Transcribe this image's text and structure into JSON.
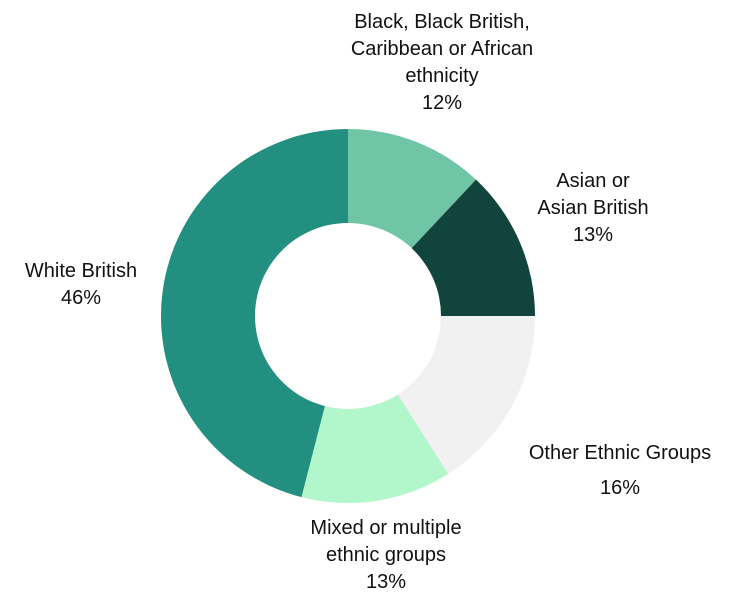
{
  "chart_data": {
    "type": "pie",
    "style": "donut",
    "start": "top",
    "direction": "clockwise",
    "slices": [
      {
        "key": "black",
        "label_lines": [
          "Black, Black British,",
          "Caribbean or African",
          "ethnicity"
        ],
        "value": 12,
        "value_label": "12%",
        "color": "#6fc5a6"
      },
      {
        "key": "asian",
        "label_lines": [
          "Asian or",
          "Asian British"
        ],
        "value": 13,
        "value_label": "13%",
        "color": "#10443c"
      },
      {
        "key": "other",
        "label_lines": [
          "Other Ethnic Groups"
        ],
        "value": 16,
        "value_label": "16%",
        "color": "#f1f1f1"
      },
      {
        "key": "mixed",
        "label_lines": [
          "Mixed or multiple",
          "ethnic groups"
        ],
        "value": 13,
        "value_label": "13%",
        "color": "#b1f7cb"
      },
      {
        "key": "white",
        "label_lines": [
          "White British"
        ],
        "value": 46,
        "value_label": "46%",
        "color": "#238f80"
      }
    ]
  }
}
